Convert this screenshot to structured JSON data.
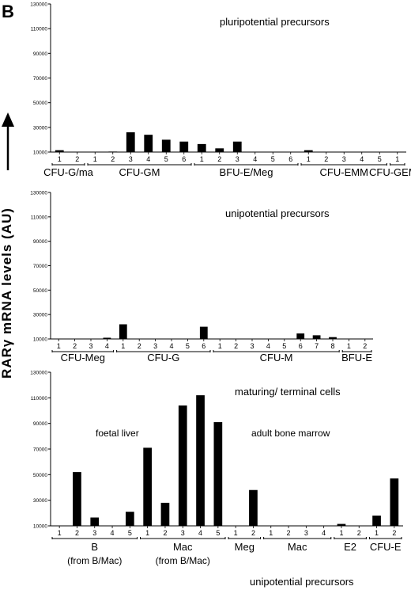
{
  "figure": {
    "panel_letter": "B",
    "ylabel": "RARγ mRNA levels (AU)",
    "footer": "unipotential precursors"
  },
  "chart_data": [
    {
      "type": "bar",
      "title": "pluripotential precursors",
      "ylim": [
        10000,
        130000
      ],
      "yticks": [
        10000,
        30000,
        50000,
        70000,
        90000,
        110000,
        130000
      ],
      "grid": false,
      "groups": [
        {
          "label": "CFU-G/ma",
          "categories": [
            "1",
            "2"
          ],
          "values": [
            11500,
            10300
          ]
        },
        {
          "label": "CFU-GM",
          "categories": [
            "1",
            "2",
            "3",
            "4",
            "5",
            "6"
          ],
          "values": [
            10300,
            10400,
            26000,
            24000,
            20000,
            18500
          ]
        },
        {
          "label": "BFU-E/Meg",
          "categories": [
            "1",
            "2",
            "3",
            "4",
            "5",
            "6"
          ],
          "values": [
            16500,
            13000,
            18500,
            10300,
            10300,
            10300
          ]
        },
        {
          "label": "CFU-EMM",
          "categories": [
            "1",
            "2",
            "3",
            "4",
            "5"
          ],
          "values": [
            11500,
            10300,
            10300,
            10300,
            10300
          ]
        },
        {
          "label": "CFU-GEMM",
          "categories": [
            "1"
          ],
          "values": [
            10300
          ]
        }
      ]
    },
    {
      "type": "bar",
      "title": "unipotential precursors",
      "ylim": [
        10000,
        130000
      ],
      "yticks": [
        10000,
        30000,
        50000,
        70000,
        90000,
        110000,
        130000
      ],
      "grid": false,
      "groups": [
        {
          "label": "CFU-Meg",
          "categories": [
            "1",
            "2",
            "3",
            "4"
          ],
          "values": [
            10300,
            10300,
            10300,
            11000
          ]
        },
        {
          "label": "CFU-G",
          "categories": [
            "1",
            "2",
            "3",
            "4",
            "5",
            "6"
          ],
          "values": [
            22000,
            10300,
            10300,
            10300,
            10300,
            20000
          ]
        },
        {
          "label": "CFU-M",
          "categories": [
            "1",
            "2",
            "3",
            "4",
            "5",
            "6",
            "7",
            "8"
          ],
          "values": [
            10300,
            10300,
            10300,
            10300,
            10300,
            14500,
            13000,
            11500
          ]
        },
        {
          "label": "BFU-E",
          "categories": [
            "1",
            "2"
          ],
          "values": [
            10300,
            10300
          ]
        }
      ]
    },
    {
      "type": "bar",
      "title": "maturing/ terminal cells",
      "annotations": [
        "foetal liver",
        "adult bone marrow"
      ],
      "ylim": [
        10000,
        130000
      ],
      "yticks": [
        10000,
        30000,
        50000,
        70000,
        90000,
        110000,
        130000
      ],
      "grid": false,
      "groups": [
        {
          "label": "B",
          "sublabel": "(from B/Mac)",
          "categories": [
            "1",
            "2",
            "3",
            "4",
            "5"
          ],
          "values": [
            10300,
            52000,
            16500,
            10300,
            21000
          ]
        },
        {
          "label": "Mac",
          "sublabel": "(from B/Mac)",
          "categories": [
            "1",
            "2",
            "3",
            "4",
            "5"
          ],
          "values": [
            71000,
            28000,
            104000,
            112000,
            91000
          ]
        },
        {
          "label": "Meg",
          "categories": [
            "1",
            "2"
          ],
          "values": [
            10300,
            38000
          ]
        },
        {
          "label": "Mac",
          "categories": [
            "1",
            "2",
            "3",
            "4"
          ],
          "values": [
            10300,
            10300,
            10300,
            10300
          ]
        },
        {
          "label": "E2",
          "categories": [
            "1",
            "2"
          ],
          "values": [
            11500,
            10300
          ]
        },
        {
          "label": "CFU-E",
          "categories": [
            "1",
            "2"
          ],
          "values": [
            18000,
            47000
          ]
        }
      ]
    }
  ]
}
